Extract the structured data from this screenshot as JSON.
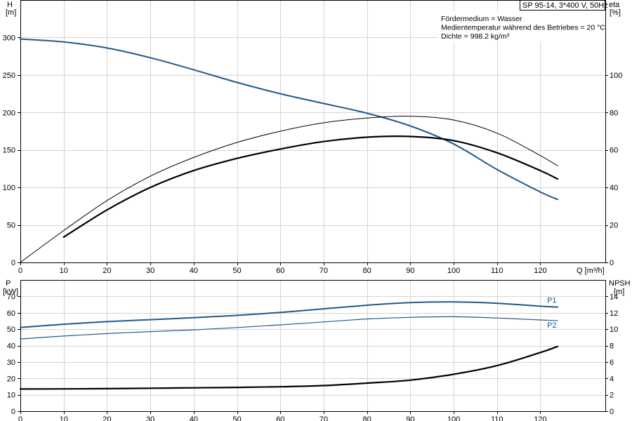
{
  "chart_data": [
    {
      "type": "line",
      "panel": "top",
      "badge": "SP 95-14, 3*400 V, 50Hz",
      "annotations": [
        "Fördermedium = Wasser",
        "Medientemperatur während des Betriebes = 20 °C",
        "Dichte = 998.2 kg/m³"
      ],
      "left_axis": {
        "title": "H",
        "unit": "[m]",
        "ylim": [
          0,
          350
        ],
        "ticks": [
          0,
          50,
          100,
          150,
          200,
          250,
          300
        ]
      },
      "right_axis": {
        "title": "eta",
        "unit": "[%]",
        "ylim": [
          0,
          140
        ],
        "ticks": [
          0,
          20,
          40,
          60,
          80,
          100
        ]
      },
      "x_axis": {
        "label": "Q [m³/h]",
        "xlim": [
          0,
          135
        ],
        "ticks": [
          0,
          10,
          20,
          30,
          40,
          50,
          60,
          70,
          80,
          90,
          100,
          110,
          120
        ]
      },
      "grid": true,
      "series": [
        {
          "id": "h",
          "axis": "left",
          "color": "#1f5a8c",
          "width": 2,
          "x": [
            0,
            10,
            20,
            30,
            40,
            50,
            60,
            70,
            80,
            90,
            100,
            110,
            120,
            124
          ],
          "y": [
            298,
            294,
            286,
            273,
            257,
            240,
            225,
            212,
            199,
            182,
            158,
            124,
            94,
            84
          ]
        },
        {
          "id": "eta_thin",
          "axis": "right",
          "color": "#000000",
          "width": 1,
          "x": [
            0,
            10,
            20,
            30,
            40,
            50,
            60,
            70,
            80,
            90,
            100,
            110,
            120,
            124
          ],
          "y": [
            0,
            17,
            33,
            46,
            56,
            64,
            70,
            74.5,
            77,
            78,
            76,
            69,
            57,
            51.5
          ]
        },
        {
          "id": "eta_thick",
          "axis": "right",
          "color": "#000000",
          "width": 2.2,
          "x": [
            10,
            20,
            30,
            40,
            50,
            60,
            70,
            80,
            90,
            100,
            110,
            120,
            124
          ],
          "y": [
            13.5,
            28,
            40,
            49,
            55.5,
            60.5,
            64.5,
            66.8,
            67.2,
            65,
            58.5,
            49,
            44.5
          ]
        }
      ]
    },
    {
      "type": "line",
      "panel": "bottom",
      "left_axis": {
        "title": "P",
        "unit": "[kW]",
        "ylim": [
          0,
          80
        ],
        "ticks": [
          0,
          10,
          20,
          30,
          40,
          50,
          60,
          70
        ]
      },
      "right_axis": {
        "title": "NPSH",
        "unit": "[m]",
        "ylim": [
          0,
          16
        ],
        "ticks": [
          0,
          2,
          4,
          6,
          8,
          10,
          12,
          14
        ]
      },
      "x_axis": {
        "xlim": [
          0,
          135
        ],
        "ticks": [
          0,
          10,
          20,
          30,
          40,
          50,
          60,
          70,
          80,
          90,
          100,
          110,
          120
        ]
      },
      "grid": true,
      "series": [
        {
          "name": "P1",
          "axis": "left",
          "color": "#1f5a8c",
          "width": 2,
          "x": [
            0,
            10,
            20,
            30,
            40,
            50,
            60,
            70,
            80,
            90,
            100,
            110,
            120,
            124
          ],
          "y": [
            51,
            53,
            54.6,
            55.8,
            57,
            58.4,
            60.2,
            62.4,
            64.6,
            66.2,
            66.6,
            65.8,
            64,
            63.5
          ]
        },
        {
          "name": "P2",
          "axis": "left",
          "color": "#1f5a8c",
          "width": 1.2,
          "x": [
            0,
            10,
            20,
            30,
            40,
            50,
            60,
            70,
            80,
            90,
            100,
            110,
            120,
            124
          ],
          "y": [
            44,
            45.8,
            47.3,
            48.5,
            49.6,
            51,
            52.6,
            54.4,
            56.2,
            57.2,
            57.6,
            56.8,
            55.6,
            55.2
          ]
        },
        {
          "id": "npsh",
          "axis": "right",
          "color": "#000000",
          "width": 2.2,
          "x": [
            0,
            10,
            20,
            30,
            40,
            50,
            60,
            70,
            80,
            90,
            100,
            110,
            120,
            124
          ],
          "y": [
            2.7,
            2.72,
            2.75,
            2.8,
            2.85,
            2.9,
            2.98,
            3.12,
            3.42,
            3.78,
            4.5,
            5.55,
            7.15,
            7.9
          ]
        }
      ]
    }
  ]
}
